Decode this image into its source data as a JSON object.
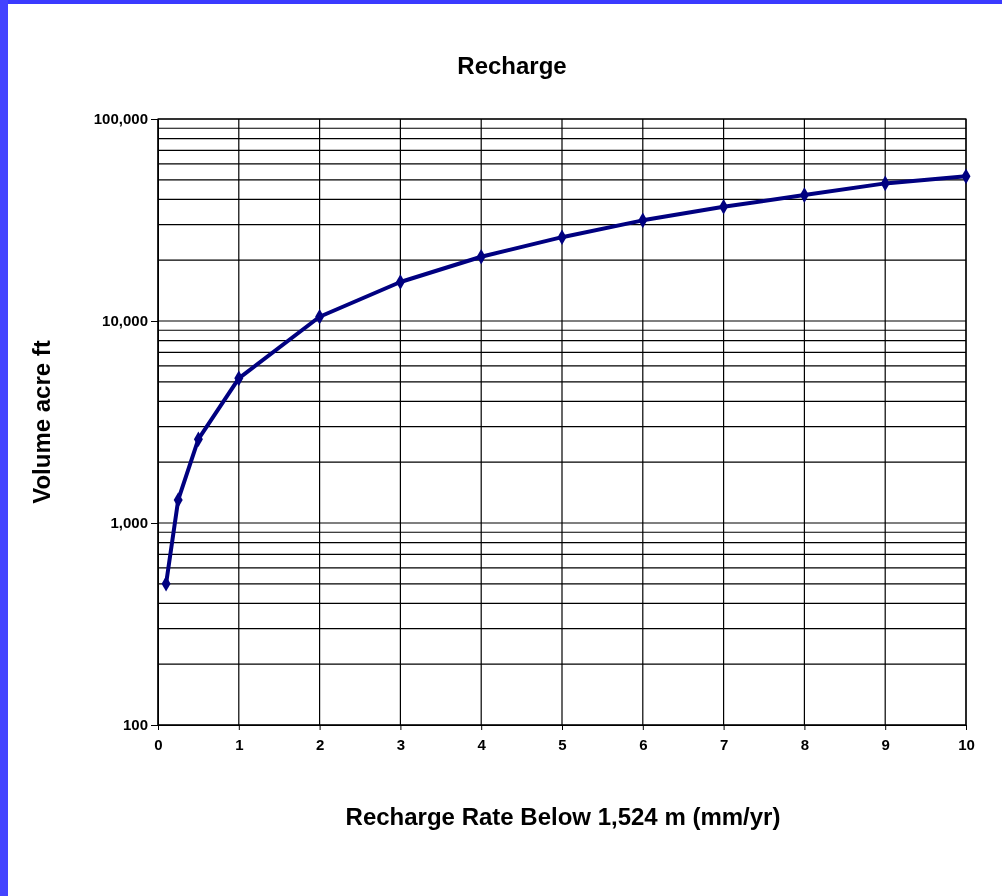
{
  "chart_data": {
    "type": "line",
    "title": "Recharge",
    "xlabel": "Recharge Rate Below 1,524 m (mm/yr)",
    "ylabel": "Volume acre ft",
    "x": [
      0.1,
      0.25,
      0.5,
      1,
      2,
      3,
      4,
      5,
      6,
      7,
      8,
      9,
      10
    ],
    "series": [
      {
        "color": "#000080",
        "values": [
          500,
          1300,
          2600,
          5200,
          10500,
          15600,
          20800,
          26000,
          31500,
          36800,
          42000,
          48000,
          52000
        ]
      }
    ],
    "xlim": [
      0,
      10
    ],
    "xticks": [
      0,
      1,
      2,
      3,
      4,
      5,
      6,
      7,
      8,
      9,
      10
    ],
    "ylim": [
      100,
      100000
    ],
    "yticks": [
      {
        "value": 100,
        "label": "100"
      },
      {
        "value": 1000,
        "label": "1,000"
      },
      {
        "value": 10000,
        "label": "10,000"
      },
      {
        "value": 100000,
        "label": "100,000"
      }
    ],
    "log": "y",
    "grid": true,
    "marker": "diamond",
    "line_style": "solid"
  }
}
